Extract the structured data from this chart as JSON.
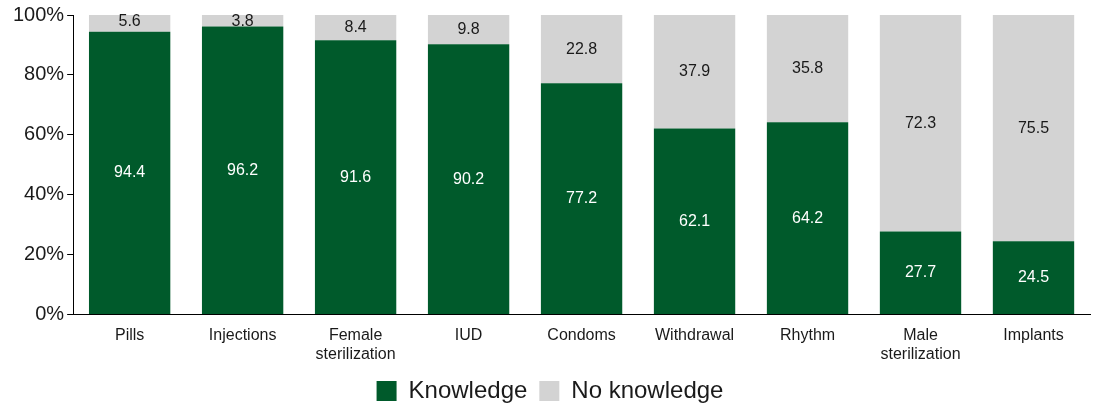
{
  "chart_data": {
    "type": "bar",
    "stacked": true,
    "categories": [
      "Pills",
      "Injections",
      "Female sterilization",
      "IUD",
      "Condoms",
      "Withdrawal",
      "Rhythm",
      "Male sterilization",
      "Implants"
    ],
    "series": [
      {
        "name": "Knowledge",
        "color": "#005a2b",
        "values": [
          94.4,
          96.2,
          91.6,
          90.2,
          77.2,
          62.1,
          64.2,
          27.7,
          24.5
        ]
      },
      {
        "name": "No knowledge",
        "color": "#d3d3d3",
        "values": [
          5.6,
          3.8,
          8.4,
          9.8,
          22.8,
          37.9,
          35.8,
          72.3,
          75.5
        ]
      }
    ],
    "ylim": [
      0,
      100
    ],
    "yticks": [
      {
        "value": 0,
        "label": "0%"
      },
      {
        "value": 20,
        "label": "20%"
      },
      {
        "value": 40,
        "label": "40%"
      },
      {
        "value": 60,
        "label": "60%"
      },
      {
        "value": 80,
        "label": "80%"
      },
      {
        "value": 100,
        "label": "100%"
      }
    ],
    "grid": false,
    "legend": "bottom",
    "data_labels": true
  }
}
